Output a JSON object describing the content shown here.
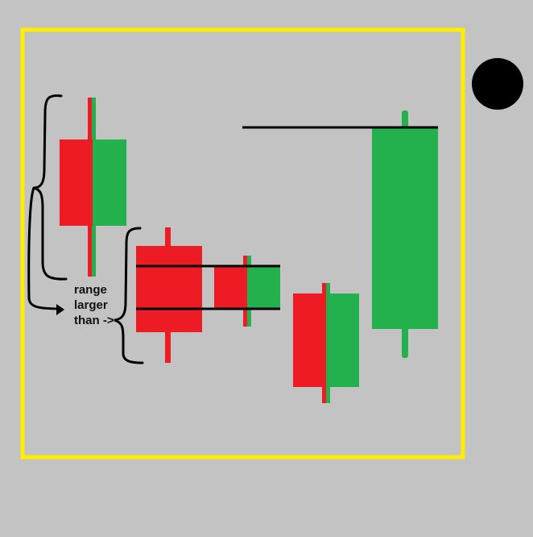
{
  "annotation": {
    "lines": [
      "range",
      "larger",
      "than ->"
    ]
  },
  "colors": {
    "background": "#c3c3c3",
    "frame": "#ffee00",
    "bear": "#ed1c24",
    "bull": "#22b14c",
    "ink": "#000000"
  },
  "icons": [
    "black-circle-dot"
  ]
}
